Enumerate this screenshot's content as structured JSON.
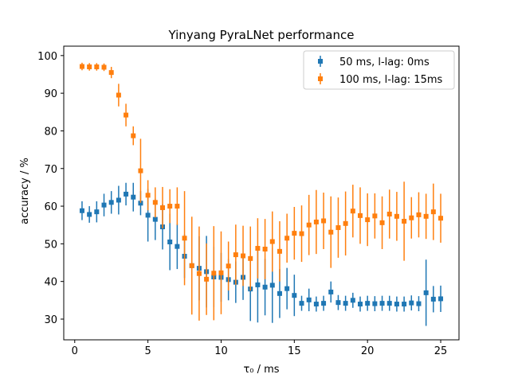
{
  "chart_data": {
    "type": "scatter",
    "title": "Yinyang PyraLNet performance",
    "xlabel": "τ₀ / ms",
    "ylabel": "accuracy / %",
    "xlim": [
      -0.75,
      26.25
    ],
    "ylim": [
      24.5,
      102.5
    ],
    "xticks": [
      0,
      5,
      10,
      15,
      20,
      25
    ],
    "yticks": [
      30,
      40,
      50,
      60,
      70,
      80,
      90,
      100
    ],
    "grid": false,
    "legend_position": "top-right",
    "x": [
      0.5,
      1.0,
      1.5,
      2.0,
      2.5,
      3.0,
      3.5,
      4.0,
      4.5,
      5.0,
      5.5,
      6.0,
      6.5,
      7.0,
      7.5,
      8.0,
      8.5,
      9.0,
      9.5,
      10.0,
      10.5,
      11.0,
      11.5,
      12.0,
      12.5,
      13.0,
      13.5,
      14.0,
      14.5,
      15.0,
      15.5,
      16.0,
      16.5,
      17.0,
      17.5,
      18.0,
      18.5,
      19.0,
      19.5,
      20.0,
      20.5,
      21.0,
      21.5,
      22.0,
      22.5,
      23.0,
      23.5,
      24.0,
      24.5,
      25.0
    ],
    "series": [
      {
        "name": "50 ms, l-lag: 0ms",
        "color": "#1f77b4",
        "values": [
          58.8,
          57.8,
          58.5,
          60.3,
          61.0,
          61.6,
          63.2,
          62.4,
          60.8,
          57.6,
          56.5,
          54.5,
          50.5,
          49.3,
          46.7,
          44.2,
          43.5,
          42.6,
          41.2,
          41.1,
          40.5,
          39.8,
          41.1,
          38.0,
          39.1,
          38.5,
          39.0,
          36.8,
          38.1,
          36.3,
          34.2,
          35.1,
          34.0,
          34.2,
          37.2,
          34.4,
          34.2,
          35.0,
          34.0,
          34.2,
          34.1,
          34.2,
          34.2,
          34.0,
          34.0,
          34.3,
          34.1,
          37.0,
          35.3,
          35.4
        ],
        "err": [
          2.5,
          2.2,
          2.8,
          3.0,
          3.0,
          3.8,
          3.0,
          3.8,
          3.2,
          7.0,
          5.5,
          6.0,
          7.5,
          6.0,
          5.8,
          7.5,
          8.5,
          9.5,
          8.0,
          6.5,
          5.5,
          5.5,
          6.0,
          8.5,
          10.0,
          7.5,
          10.0,
          6.5,
          5.5,
          5.5,
          2.0,
          3.0,
          2.0,
          2.0,
          2.8,
          2.0,
          2.0,
          2.0,
          2.0,
          2.0,
          2.0,
          2.0,
          2.0,
          2.0,
          2.0,
          2.0,
          2.0,
          8.8,
          3.5,
          3.5
        ]
      },
      {
        "name": "100 ms, l-lag: 15ms",
        "color": "#ff7f0e",
        "values": [
          97.1,
          97.0,
          97.0,
          96.9,
          95.5,
          89.5,
          84.2,
          78.7,
          69.4,
          62.9,
          61.0,
          59.6,
          60.0,
          60.0,
          51.5,
          44.2,
          42.1,
          40.6,
          42.2,
          42.3,
          44.1,
          47.1,
          46.8,
          46.1,
          48.8,
          48.6,
          50.6,
          48.0,
          51.5,
          52.8,
          52.7,
          55.0,
          55.8,
          56.1,
          53.1,
          54.3,
          55.4,
          58.7,
          57.5,
          56.4,
          57.4,
          55.6,
          57.9,
          57.3,
          56.0,
          56.9,
          57.7,
          57.3,
          58.5,
          56.8
        ],
        "err": [
          1.0,
          1.0,
          1.0,
          1.0,
          1.5,
          3.0,
          3.0,
          2.5,
          8.5,
          4.0,
          4.0,
          5.5,
          4.5,
          5.0,
          12.5,
          13.0,
          12.5,
          9.5,
          12.5,
          11.0,
          6.5,
          8.0,
          8.0,
          8.5,
          8.0,
          8.0,
          8.0,
          8.0,
          6.5,
          7.0,
          7.5,
          8.0,
          8.5,
          7.5,
          9.5,
          8.0,
          8.5,
          7.0,
          7.5,
          7.0,
          6.0,
          7.0,
          6.5,
          6.5,
          10.5,
          5.5,
          6.0,
          6.0,
          7.5,
          6.5
        ]
      }
    ]
  }
}
